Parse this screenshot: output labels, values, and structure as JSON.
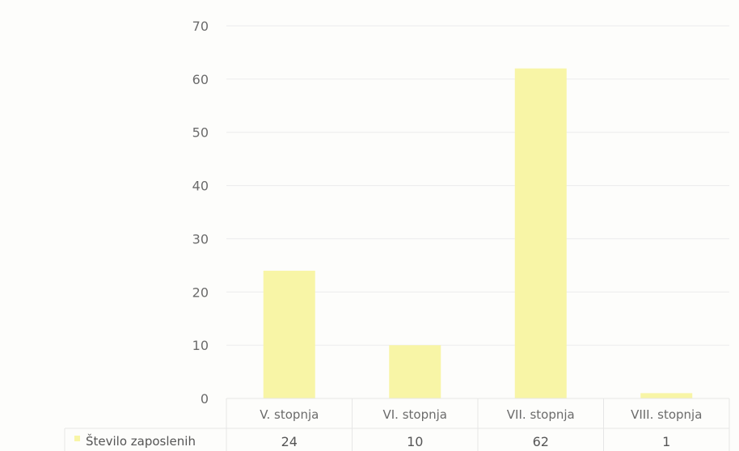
{
  "chart_data": {
    "type": "bar",
    "categories": [
      "V. stopnja",
      "VI. stopnja",
      "VII. stopnja",
      "VIII. stopnja"
    ],
    "series": [
      {
        "name": "Število zaposlenih",
        "values": [
          24,
          10,
          62,
          1
        ],
        "color": "#f8f5a6"
      }
    ],
    "yticks": [
      "0",
      "10",
      "20",
      "30",
      "40",
      "50",
      "60",
      "70"
    ],
    "ylim": [
      0,
      70
    ],
    "grid": true,
    "data_table": true,
    "legend": "in data table"
  }
}
